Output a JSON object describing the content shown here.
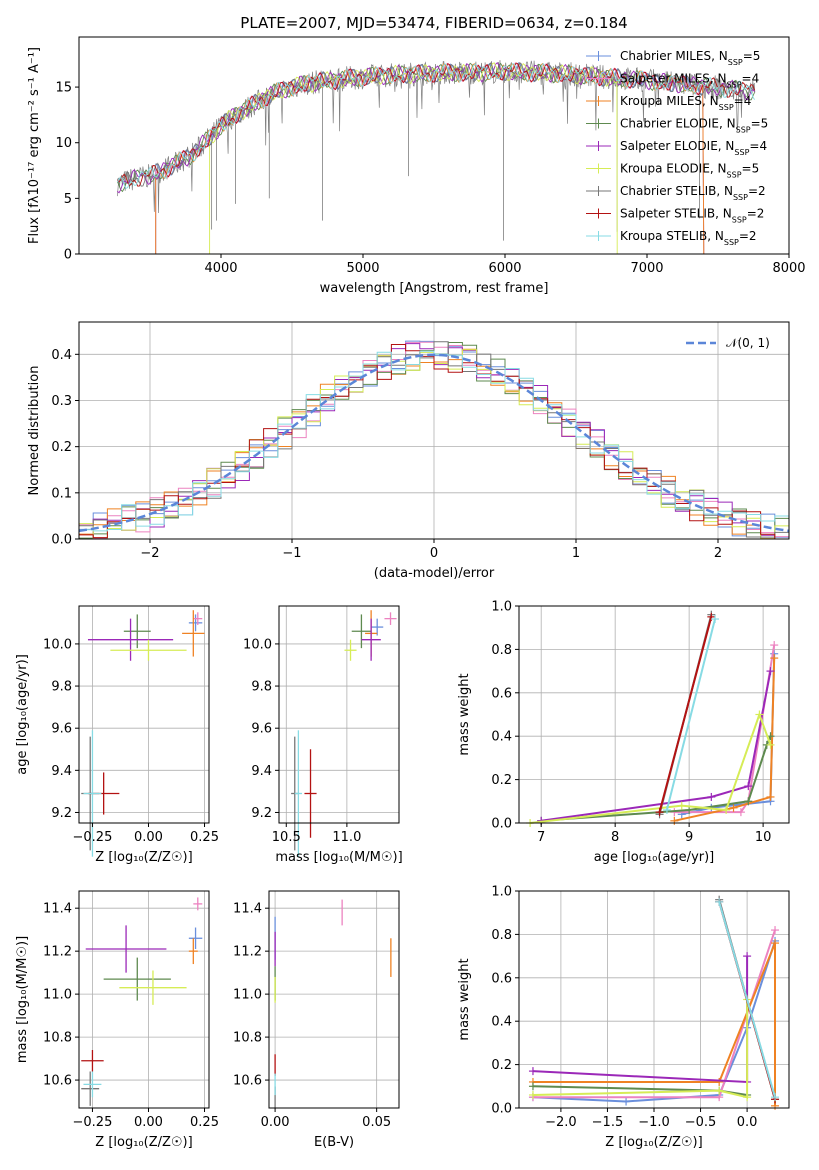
{
  "title": "PLATE=2007, MJD=53474, FIBERID=0634, z=0.184",
  "colors": {
    "Chabrier MILES": "#6a8fdc",
    "Salpeter MILES": "#ec82c0",
    "Kroupa MILES": "#ef8223",
    "Chabrier ELODIE": "#5e8a4f",
    "Salpeter ELODIE": "#9b28b8",
    "Kroupa ELODIE": "#d6ec56",
    "Chabrier STELIB": "#777777",
    "Salpeter STELIB": "#b31212",
    "Kroupa STELIB": "#87dbe4"
  },
  "legend_spectrum": [
    {
      "name": "Chabrier MILES",
      "nssp": "5"
    },
    {
      "name": "Salpeter MILES",
      "nssp": "4"
    },
    {
      "name": "Kroupa MILES",
      "nssp": "4"
    },
    {
      "name": "Chabrier ELODIE",
      "nssp": "5"
    },
    {
      "name": "Salpeter ELODIE",
      "nssp": "4"
    },
    {
      "name": "Kroupa ELODIE",
      "nssp": "5"
    },
    {
      "name": "Chabrier STELIB",
      "nssp": "2"
    },
    {
      "name": "Salpeter STELIB",
      "nssp": "2"
    },
    {
      "name": "Kroupa STELIB",
      "nssp": "2"
    }
  ],
  "legend_hist": "𝒩(0, 1)",
  "chart_data": [
    {
      "type": "line",
      "panel": "spectrum",
      "xlabel": "wavelength [Angstrom, rest frame]",
      "ylabel": "Flux [f_λ 10^-17 erg cm^-2 s^-1 A^-1]",
      "xlim": [
        3000,
        8000
      ],
      "ylim": [
        0,
        19.5
      ],
      "xticks": [
        "4000",
        "5000",
        "6000",
        "7000",
        "8000"
      ],
      "yticks": [
        "0",
        "5",
        "10",
        "15"
      ],
      "x": [
        3270,
        3400,
        3500,
        3600,
        3700,
        3800,
        3900,
        4000,
        4100,
        4200,
        4300,
        4400,
        4500,
        4600,
        4700,
        4800,
        4900,
        5000,
        5200,
        5400,
        5600,
        5800,
        6000,
        6200,
        6400,
        6600,
        6800,
        7000,
        7200,
        7400,
        7600,
        7760
      ],
      "continuum": [
        6.3,
        6.8,
        7.0,
        7.6,
        8.2,
        9.0,
        10.2,
        11.5,
        12.5,
        13.2,
        14.0,
        14.6,
        15.0,
        15.3,
        15.5,
        15.6,
        15.8,
        15.9,
        16.1,
        16.2,
        16.3,
        16.3,
        16.4,
        16.3,
        16.2,
        16.0,
        15.8,
        15.6,
        15.3,
        15.1,
        14.8,
        14.6
      ],
      "notes": "observed spectrum (grey) with nine overlaid model fits"
    },
    {
      "type": "bar",
      "panel": "residual-histogram",
      "xlabel": "(data-model)/error",
      "ylabel": "Normed distribution",
      "xlim": [
        -2.5,
        2.5
      ],
      "ylim": [
        0,
        0.47
      ],
      "xticks": [
        "−2",
        "−1",
        "0",
        "1",
        "2"
      ],
      "yticks": [
        "0.0",
        "0.1",
        "0.2",
        "0.3",
        "0.4"
      ],
      "bin_width": 0.1,
      "gaussian": {
        "name": "𝒩(0, 1)",
        "mu": 0,
        "sigma": 1
      }
    },
    {
      "type": "scatter",
      "panel": "Z-vs-age",
      "xlabel": "Z [log10(Z/Z☉)]",
      "ylabel": "age [log10(age/yr)]",
      "xlim": [
        -0.31,
        0.27
      ],
      "ylim": [
        9.15,
        10.18
      ],
      "xticks": [
        "−0.25",
        "0.00",
        "0.25"
      ],
      "yticks": [
        "9.2",
        "9.4",
        "9.6",
        "9.8",
        "10.0"
      ],
      "points": [
        {
          "model": "Chabrier MILES",
          "x": 0.21,
          "y": 10.1,
          "xerr": 0.03,
          "yerr": 0.04
        },
        {
          "model": "Salpeter MILES",
          "x": 0.22,
          "y": 10.12,
          "xerr": 0.02,
          "yerr": 0.03
        },
        {
          "model": "Kroupa MILES",
          "x": 0.2,
          "y": 10.05,
          "xerr": 0.05,
          "yerr": 0.11
        },
        {
          "model": "Chabrier ELODIE",
          "x": -0.05,
          "y": 10.06,
          "xerr": 0.06,
          "yerr": 0.08
        },
        {
          "model": "Salpeter ELODIE",
          "x": -0.08,
          "y": 10.02,
          "xerr": 0.19,
          "yerr": 0.1
        },
        {
          "model": "Kroupa ELODIE",
          "x": 0.0,
          "y": 9.97,
          "xerr": 0.17,
          "yerr": 0.05
        },
        {
          "model": "Chabrier STELIB",
          "x": -0.26,
          "y": 9.29,
          "xerr": 0.04,
          "yerr": 0.27
        },
        {
          "model": "Salpeter STELIB",
          "x": -0.2,
          "y": 9.29,
          "xerr": 0.07,
          "yerr": 0.1
        },
        {
          "model": "Kroupa STELIB",
          "x": -0.25,
          "y": 9.29,
          "xerr": 0.04,
          "yerr": 0.3
        }
      ]
    },
    {
      "type": "scatter",
      "panel": "mass-vs-age",
      "xlabel": "mass [log10(M/M☉)]",
      "ylabel": "",
      "xlim": [
        10.44,
        11.43
      ],
      "ylim": [
        9.15,
        10.18
      ],
      "xticks": [
        "10.5",
        "11.0"
      ],
      "yticks": [
        "9.2",
        "9.4",
        "9.6",
        "9.8",
        "10.0"
      ],
      "points": [
        {
          "model": "Chabrier MILES",
          "x": 11.25,
          "y": 10.08,
          "xerr": 0.05,
          "yerr": 0.04
        },
        {
          "model": "Salpeter MILES",
          "x": 11.36,
          "y": 10.12,
          "xerr": 0.05,
          "yerr": 0.03
        },
        {
          "model": "Kroupa MILES",
          "x": 11.2,
          "y": 10.05,
          "xerr": 0.05,
          "yerr": 0.11
        },
        {
          "model": "Chabrier ELODIE",
          "x": 11.12,
          "y": 10.06,
          "xerr": 0.08,
          "yerr": 0.08
        },
        {
          "model": "Salpeter ELODIE",
          "x": 11.2,
          "y": 10.02,
          "xerr": 0.08,
          "yerr": 0.1
        },
        {
          "model": "Kroupa ELODIE",
          "x": 11.03,
          "y": 9.97,
          "xerr": 0.05,
          "yerr": 0.05
        },
        {
          "model": "Chabrier STELIB",
          "x": 10.57,
          "y": 9.29,
          "xerr": 0.03,
          "yerr": 0.27
        },
        {
          "model": "Salpeter STELIB",
          "x": 10.7,
          "y": 9.29,
          "xerr": 0.05,
          "yerr": 0.21
        },
        {
          "model": "Kroupa STELIB",
          "x": 10.6,
          "y": 9.29,
          "xerr": 0.03,
          "yerr": 0.3
        }
      ]
    },
    {
      "type": "line",
      "panel": "age-vs-mass-weight",
      "xlabel": "age [log10(age/yr)]",
      "ylabel": "mass weight",
      "xlim": [
        6.7,
        10.35
      ],
      "ylim": [
        0,
        1
      ],
      "xticks": [
        "7",
        "8",
        "9",
        "10"
      ],
      "yticks": [
        "0.0",
        "0.2",
        "0.4",
        "0.6",
        "0.8",
        "1.0"
      ],
      "series": [
        {
          "model": "Chabrier MILES",
          "x": [
            8.9,
            9.3,
            10.1,
            10.15
          ],
          "y": [
            0.04,
            0.07,
            0.1,
            0.78
          ]
        },
        {
          "model": "Salpeter MILES",
          "x": [
            8.8,
            9.7,
            9.8,
            10.15
          ],
          "y": [
            0.05,
            0.05,
            0.1,
            0.82
          ]
        },
        {
          "model": "Kroupa MILES",
          "x": [
            8.8,
            9.6,
            10.1,
            10.15
          ],
          "y": [
            0.01,
            0.07,
            0.12,
            0.76
          ]
        },
        {
          "model": "Chabrier ELODIE",
          "x": [
            7.0,
            9.0,
            9.8,
            10.05,
            10.1
          ],
          "y": [
            0.01,
            0.06,
            0.1,
            0.36,
            0.4
          ]
        },
        {
          "model": "Salpeter ELODIE",
          "x": [
            7.0,
            9.3,
            9.8,
            10.1
          ],
          "y": [
            0.01,
            0.12,
            0.17,
            0.7
          ]
        },
        {
          "model": "Kroupa ELODIE",
          "x": [
            6.85,
            8.9,
            9.5,
            9.95,
            10.1
          ],
          "y": [
            0.0,
            0.08,
            0.06,
            0.5,
            0.36
          ]
        },
        {
          "model": "Chabrier STELIB",
          "x": [
            8.6,
            9.3
          ],
          "y": [
            0.04,
            0.96
          ]
        },
        {
          "model": "Salpeter STELIB",
          "x": [
            8.6,
            9.3
          ],
          "y": [
            0.05,
            0.95
          ]
        },
        {
          "model": "Kroupa STELIB",
          "x": [
            8.7,
            9.35
          ],
          "y": [
            0.06,
            0.94
          ]
        }
      ]
    },
    {
      "type": "scatter",
      "panel": "Z-vs-mass",
      "xlabel": "Z [log10(Z/Z☉)]",
      "ylabel": "mass [log10(M/M☉)]",
      "xlim": [
        -0.31,
        0.27
      ],
      "ylim": [
        10.47,
        11.48
      ],
      "xticks": [
        "−0.25",
        "0.00",
        "0.25"
      ],
      "yticks": [
        "10.6",
        "10.8",
        "11.0",
        "11.2",
        "11.4"
      ],
      "points": [
        {
          "model": "Chabrier MILES",
          "x": 0.21,
          "y": 11.26,
          "xerr": 0.03,
          "yerr": 0.05
        },
        {
          "model": "Salpeter MILES",
          "x": 0.22,
          "y": 11.42,
          "xerr": 0.02,
          "yerr": 0.03
        },
        {
          "model": "Kroupa MILES",
          "x": 0.2,
          "y": 11.2,
          "xerr": 0.02,
          "yerr": 0.06
        },
        {
          "model": "Chabrier ELODIE",
          "x": -0.05,
          "y": 11.07,
          "xerr": 0.15,
          "yerr": 0.1
        },
        {
          "model": "Salpeter ELODIE",
          "x": -0.1,
          "y": 11.21,
          "xerr": 0.18,
          "yerr": 0.11
        },
        {
          "model": "Kroupa ELODIE",
          "x": 0.02,
          "y": 11.03,
          "xerr": 0.15,
          "yerr": 0.08
        },
        {
          "model": "Chabrier STELIB",
          "x": -0.26,
          "y": 10.56,
          "xerr": 0.04,
          "yerr": 0.08
        },
        {
          "model": "Salpeter STELIB",
          "x": -0.25,
          "y": 10.69,
          "xerr": 0.05,
          "yerr": 0.05
        },
        {
          "model": "Kroupa STELIB",
          "x": -0.25,
          "y": 10.58,
          "xerr": 0.04,
          "yerr": 0.06
        }
      ]
    },
    {
      "type": "scatter",
      "panel": "ebv-vs-mass",
      "xlabel": "E(B-V)",
      "ylabel": "",
      "xlim": [
        -0.003,
        0.061
      ],
      "ylim": [
        10.47,
        11.48
      ],
      "xticks": [
        "0.00",
        "0.05"
      ],
      "yticks": [
        "10.6",
        "10.8",
        "11.0",
        "11.2",
        "11.4"
      ],
      "points": [
        {
          "model": "Chabrier MILES",
          "x": 0.0,
          "y": 11.26,
          "xerr": 0,
          "yerr": 0.1
        },
        {
          "model": "Salpeter MILES",
          "x": 0.033,
          "y": 11.38,
          "xerr": 0,
          "yerr": 0.06
        },
        {
          "model": "Kroupa MILES",
          "x": 0.057,
          "y": 11.17,
          "xerr": 0,
          "yerr": 0.09
        },
        {
          "model": "Chabrier ELODIE",
          "x": 0.0,
          "y": 11.05,
          "xerr": 0,
          "yerr": 0.08
        },
        {
          "model": "Salpeter ELODIE",
          "x": 0.0,
          "y": 11.21,
          "xerr": 0,
          "yerr": 0.08
        },
        {
          "model": "Kroupa ELODIE",
          "x": 0.0,
          "y": 11.02,
          "xerr": 0,
          "yerr": 0.06
        },
        {
          "model": "Chabrier STELIB",
          "x": 0.0,
          "y": 10.52,
          "xerr": 0,
          "yerr": 0.05
        },
        {
          "model": "Salpeter STELIB",
          "x": 0.0,
          "y": 10.67,
          "xerr": 0,
          "yerr": 0.05
        },
        {
          "model": "Kroupa STELIB",
          "x": 0.0,
          "y": 10.58,
          "xerr": 0,
          "yerr": 0.05
        }
      ]
    },
    {
      "type": "line",
      "panel": "Z-vs-mass-weight",
      "xlabel": "Z [log10(Z/Z☉)]",
      "ylabel": "mass weight",
      "xlim": [
        -2.45,
        0.45
      ],
      "ylim": [
        0,
        1
      ],
      "xticks": [
        "−2.0",
        "−1.5",
        "−1.0",
        "−0.5",
        "0.0"
      ],
      "yticks": [
        "0.0",
        "0.2",
        "0.4",
        "0.6",
        "0.8",
        "1.0"
      ],
      "series": [
        {
          "model": "Chabrier MILES",
          "x": [
            -2.3,
            -1.3,
            -0.3,
            0.0,
            0.3
          ],
          "y": [
            0.05,
            0.03,
            0.06,
            0.37,
            0.77
          ]
        },
        {
          "model": "Salpeter MILES",
          "x": [
            -2.3,
            -0.3,
            0.3
          ],
          "y": [
            0.05,
            0.05,
            0.82
          ]
        },
        {
          "model": "Kroupa MILES",
          "x": [
            -2.3,
            -0.3,
            0.3,
            0.3
          ],
          "y": [
            0.12,
            0.12,
            0.76,
            0.01
          ]
        },
        {
          "model": "Chabrier ELODIE",
          "x": [
            -2.3,
            -0.3,
            0.0
          ],
          "y": [
            0.1,
            0.08,
            0.06
          ]
        },
        {
          "model": "Salpeter ELODIE",
          "x": [
            -2.3,
            0.0,
            0.0
          ],
          "y": [
            0.17,
            0.12,
            0.7
          ]
        },
        {
          "model": "Kroupa ELODIE",
          "x": [
            -2.3,
            -0.3,
            0.0,
            0.0
          ],
          "y": [
            0.06,
            0.08,
            0.05,
            0.5
          ]
        },
        {
          "model": "Chabrier STELIB",
          "x": [
            -0.3,
            0.3
          ],
          "y": [
            0.96,
            0.04
          ]
        },
        {
          "model": "Salpeter STELIB",
          "x": [
            -0.3,
            0.3
          ],
          "y": [
            0.95,
            0.04
          ]
        },
        {
          "model": "Kroupa STELIB",
          "x": [
            -0.3,
            0.3
          ],
          "y": [
            0.95,
            0.05
          ]
        }
      ]
    }
  ]
}
